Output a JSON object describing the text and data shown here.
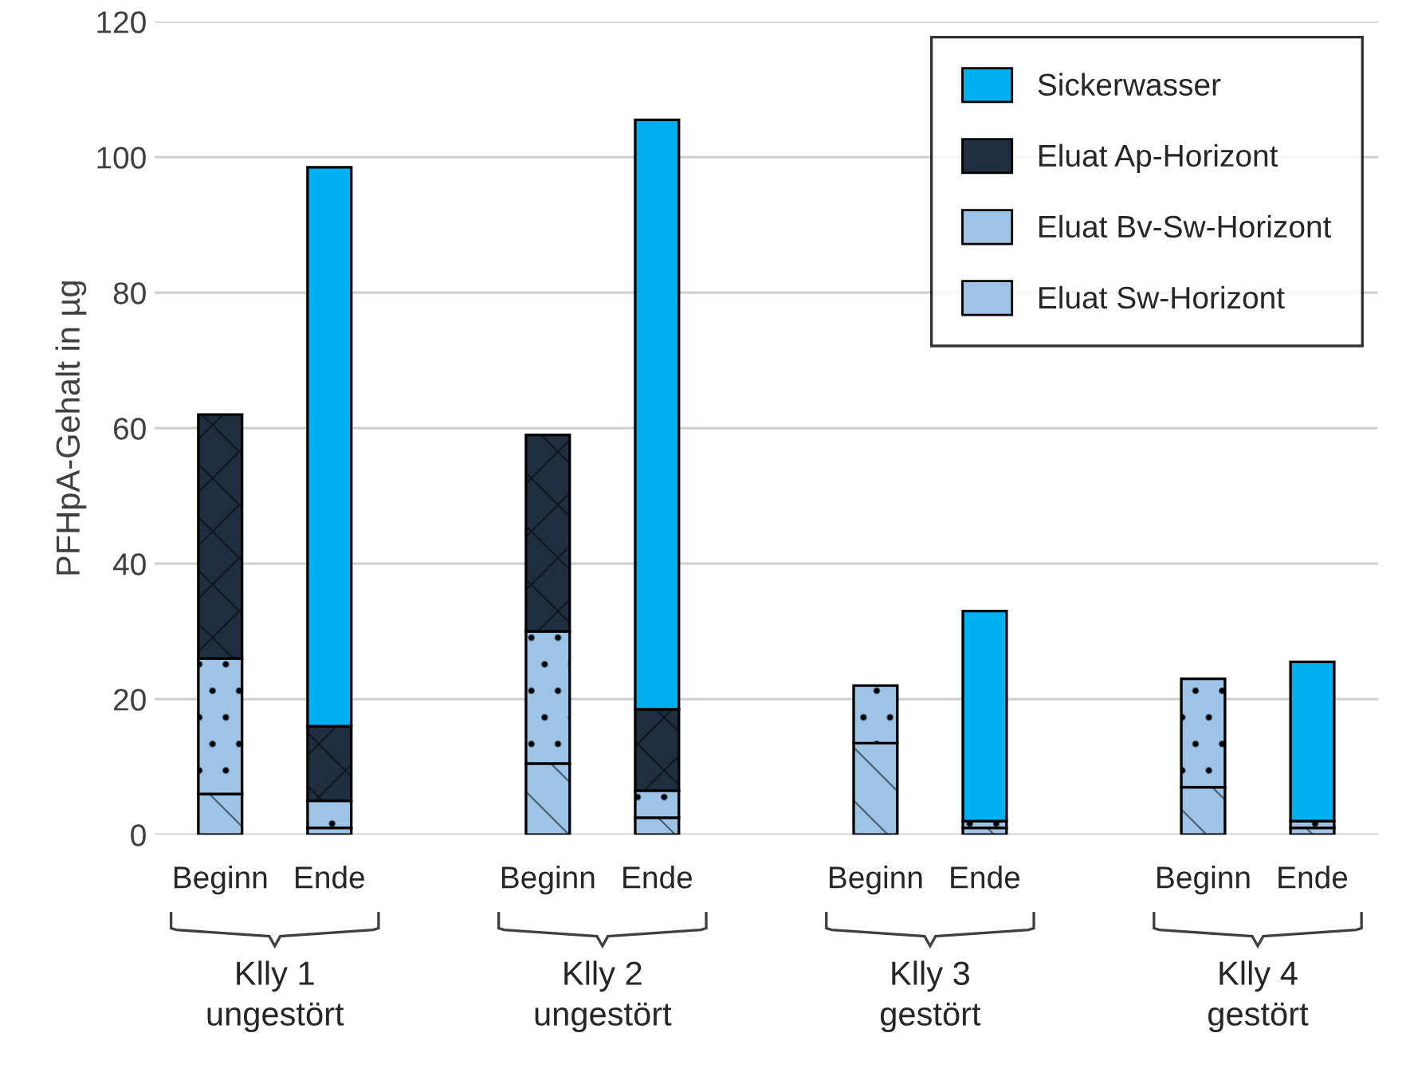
{
  "chart_data": {
    "type": "bar",
    "stacked": true,
    "ylabel": "PFHpA-Gehalt in µg",
    "categories": [
      "Beginn",
      "Ende",
      null,
      "Beginn",
      "Ende",
      null,
      "Beginn",
      "Ende",
      null,
      "Beginn",
      "Ende"
    ],
    "series": [
      {
        "name": "Eluat Sw-Horizont",
        "color": "#9dc3e6",
        "values": [
          6,
          1,
          null,
          10.5,
          2.5,
          null,
          13.5,
          1,
          null,
          7,
          1
        ]
      },
      {
        "name": "Eluat Bv-Sw-Horizont",
        "color": "#9dc3e6",
        "values": [
          20,
          4,
          null,
          19.5,
          4,
          null,
          8.5,
          1,
          null,
          16,
          1
        ]
      },
      {
        "name": "Eluat Ap-Horizont",
        "color": "#1f2f40",
        "values": [
          36,
          11,
          null,
          29,
          12,
          null,
          null,
          null,
          null,
          null,
          null
        ]
      },
      {
        "name": "Sickerwasser",
        "color": "#00b0f0",
        "values": [
          null,
          82.5,
          null,
          null,
          87,
          null,
          null,
          31,
          null,
          null,
          23.5
        ]
      }
    ],
    "ylim": [
      0,
      120
    ],
    "yticks": [
      0,
      20,
      40,
      60,
      80,
      100,
      120
    ],
    "grid": "y",
    "legend": "top right",
    "annotations": [
      "Klly 1\nungestört",
      "Klly 2\nungestört",
      "Klly 3\ngestört",
      "Klly 4\ngestört"
    ]
  }
}
